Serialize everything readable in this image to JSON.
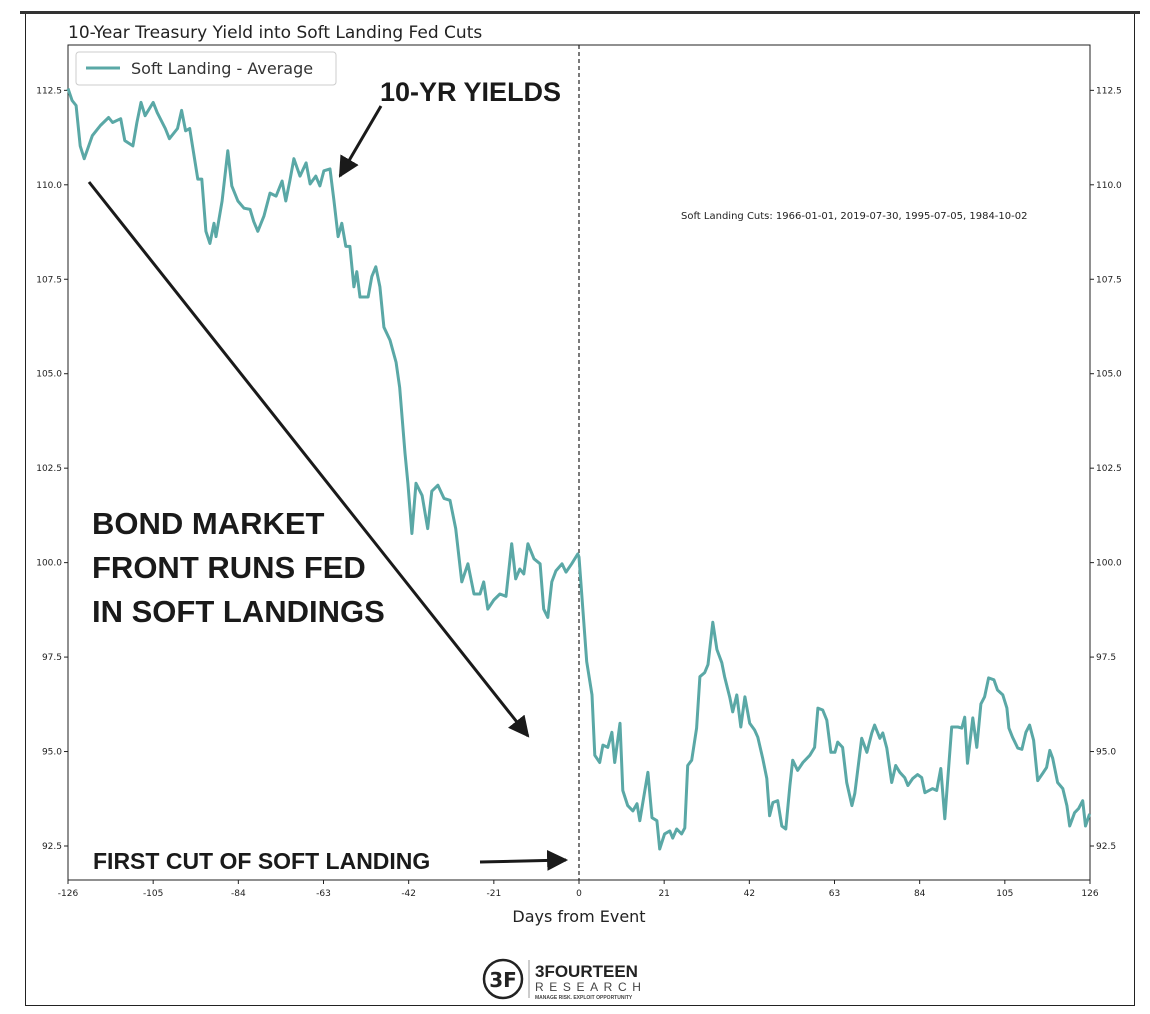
{
  "chart_data": {
    "type": "line",
    "title": "10-Year Treasury Yield into Soft Landing Fed Cuts",
    "xlabel": "Days from Event",
    "ylabel": "",
    "xlim": [
      -126,
      126
    ],
    "ylim": [
      91.6,
      113.7
    ],
    "xticks": [
      -126,
      -105,
      -84,
      -63,
      -42,
      -21,
      0,
      21,
      42,
      63,
      84,
      105,
      126
    ],
    "yticks": [
      "92.5",
      "95.0",
      "97.5",
      "100.0",
      "102.5",
      "105.0",
      "107.5",
      "110.0",
      "112.5"
    ],
    "legend": {
      "position": "top-left",
      "entries": [
        "Soft Landing - Average"
      ]
    },
    "event_line_x": 0,
    "series": [
      {
        "name": "Soft Landing - Average",
        "color": "#5aa8a6",
        "x": [
          -126,
          -125,
          -124,
          -123,
          -122,
          -120,
          -118,
          -116,
          -115,
          -113,
          -112,
          -110,
          -109,
          -108,
          -107,
          -105,
          -104,
          -102,
          -101,
          -99,
          -98,
          -97,
          -96,
          -94,
          -93,
          -92,
          -91,
          -90,
          -89.5,
          -88,
          -86.6,
          -85.6,
          -84.1,
          -82.6,
          -81.1,
          -80.2,
          -79.2,
          -77.7,
          -76.2,
          -74.7,
          -73.2,
          -72.3,
          -71.3,
          -70.3,
          -68.8,
          -67.3,
          -66.3,
          -64.9,
          -63.9,
          -62.9,
          -61.4,
          -60.4,
          -59.4,
          -58.5,
          -57.5,
          -56.5,
          -55.5,
          -54.8,
          -54,
          -52,
          -51.1,
          -50.1,
          -49.1,
          -48.1,
          -46.6,
          -45.1,
          -44.2,
          -42.9,
          -42.2,
          -41.2,
          -40.2,
          -38.7,
          -37.3,
          -36.3,
          -34.8,
          -33.3,
          -31.8,
          -30.4,
          -28.9,
          -27.4,
          -25.9,
          -24.4,
          -23.5,
          -22.5,
          -21,
          -19.5,
          -18,
          -16.6,
          -15.6,
          -14.6,
          -13.6,
          -12.6,
          -11.1,
          -9.6,
          -8.7,
          -7.7,
          -6.7,
          -5.7,
          -4.2,
          -3.2,
          -1.8,
          -0.3,
          0,
          1.9,
          3.2,
          3.9,
          5.1,
          5.9,
          7.1,
          8.1,
          8.8,
          10.1,
          10.8,
          12,
          13.3,
          14.3,
          15,
          17,
          18,
          19.2,
          19.9,
          21.1,
          22.4,
          23.1,
          24.1,
          25.3,
          26.1,
          26.8,
          27.8,
          29,
          29.8,
          31,
          31.8,
          33,
          34,
          35.2,
          35.9,
          37.2,
          37.9,
          38.9,
          39.9,
          40.9,
          42.1,
          43.3,
          44.1,
          45.3,
          46.3,
          47,
          47.8,
          49,
          50,
          51,
          52,
          52.7,
          53.9,
          55.2,
          56.9,
          58.1,
          58.9,
          60.1,
          61.1,
          62.1,
          63.1,
          63.8,
          65,
          66,
          67.3,
          68,
          69.7,
          71,
          72.2,
          72.9,
          74.2,
          74.9,
          75.9,
          77.1,
          78.1,
          79.1,
          80.3,
          81.1,
          82.3,
          83.5,
          84.5,
          85.3,
          87.2,
          88.2,
          89.2,
          90.2,
          91.9,
          93.4,
          94.4,
          95.1,
          95.8,
          97.1,
          98.1,
          99.1,
          100,
          101,
          102.3,
          103.2,
          104.5,
          105.5,
          106,
          106.9,
          108.2,
          109.2,
          110.2,
          111.1,
          112.1,
          113.1,
          114.3,
          115.3,
          116.1,
          116.8,
          118,
          119.3,
          120.3,
          121,
          122.2,
          123.2,
          124.2,
          124.9,
          125.9
        ],
        "y": [
          112.55,
          112.23,
          112.1,
          111.03,
          110.69,
          111.3,
          111.57,
          111.78,
          111.65,
          111.75,
          111.17,
          111.03,
          111.65,
          112.18,
          111.83,
          112.18,
          111.91,
          111.49,
          111.22,
          111.49,
          111.97,
          111.43,
          111.49,
          110.15,
          110.15,
          108.77,
          108.45,
          108.98,
          108.63,
          109.57,
          110.9,
          109.97,
          109.57,
          109.38,
          109.35,
          109.03,
          108.77,
          109.17,
          109.78,
          109.7,
          110.1,
          109.57,
          110.1,
          110.69,
          110.23,
          110.58,
          110.02,
          110.23,
          109.97,
          110.37,
          110.42,
          109.57,
          108.63,
          108.98,
          108.37,
          108.37,
          107.3,
          107.7,
          107.03,
          107.03,
          107.57,
          107.83,
          107.3,
          106.23,
          105.89,
          105.3,
          104.63,
          102.9,
          102.1,
          100.77,
          102.1,
          101.78,
          100.9,
          101.89,
          102.05,
          101.7,
          101.65,
          100.9,
          99.49,
          99.97,
          99.17,
          99.17,
          99.49,
          98.77,
          99.01,
          99.17,
          99.11,
          100.5,
          99.57,
          99.83,
          99.7,
          100.5,
          100.1,
          99.97,
          98.77,
          98.55,
          99.49,
          99.78,
          99.97,
          99.75,
          99.97,
          100.23,
          100.15,
          97.38,
          96.5,
          94.9,
          94.71,
          95.17,
          95.11,
          95.51,
          94.71,
          95.75,
          93.97,
          93.57,
          93.43,
          93.62,
          93.17,
          94.45,
          93.25,
          93.17,
          92.42,
          92.82,
          92.9,
          92.71,
          92.95,
          92.82,
          92.98,
          94.63,
          94.77,
          95.62,
          96.98,
          97.09,
          97.3,
          98.42,
          97.7,
          97.35,
          96.98,
          96.42,
          96.05,
          96.5,
          95.65,
          96.45,
          95.75,
          95.57,
          95.38,
          94.82,
          94.29,
          93.3,
          93.65,
          93.7,
          93.03,
          92.95,
          94.1,
          94.77,
          94.5,
          94.71,
          94.9,
          95.11,
          96.15,
          96.1,
          95.83,
          94.98,
          94.98,
          95.25,
          95.11,
          94.18,
          93.57,
          93.89,
          95.35,
          94.98,
          95.49,
          95.7,
          95.35,
          95.49,
          95.09,
          94.18,
          94.63,
          94.45,
          94.31,
          94.1,
          94.29,
          94.39,
          94.31,
          93.91,
          94.02,
          93.97,
          94.55,
          93.22,
          95.65,
          95.65,
          95.62,
          95.91,
          94.69,
          95.89,
          95.11,
          96.26,
          96.45,
          96.95,
          96.9,
          96.63,
          96.5,
          96.15,
          95.62,
          95.38,
          95.09,
          95.06,
          95.51,
          95.7,
          95.3,
          94.23,
          94.42,
          94.58,
          95.03,
          94.82,
          94.18,
          94.02,
          93.57,
          93.03,
          93.38,
          93.49,
          93.7,
          93.03,
          93.35
        ]
      }
    ],
    "annotations": {
      "yields_label": "10-YR YIELDS",
      "headline_lines": [
        "BOND MARKET",
        "FRONT RUNS FED",
        "IN SOFT LANDINGS"
      ],
      "first_cut_label": "FIRST CUT OF SOFT LANDING",
      "cuts_note": "Soft Landing Cuts: 1966-01-01, 2019-07-30, 1995-07-05, 1984-10-02"
    }
  },
  "logo": {
    "name_line1": "3FOURTEEN",
    "name_line2": "RESEARCH",
    "tagline": "MANAGE RISK. EXPLOIT OPPORTUNITY",
    "monogram": "3F"
  }
}
